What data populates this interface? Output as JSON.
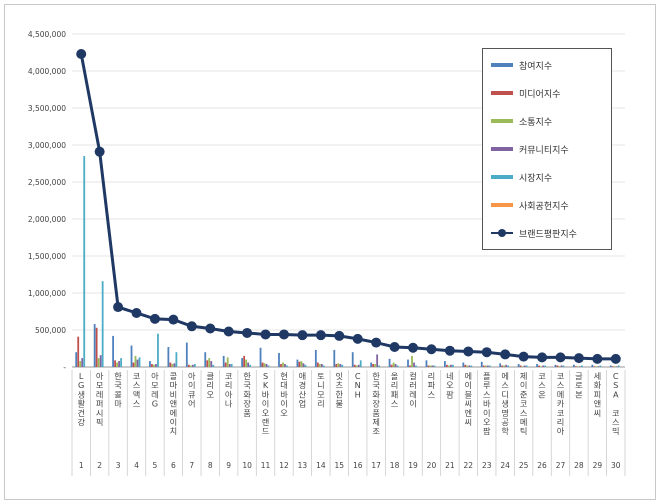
{
  "chart_data": {
    "type": "bar+line",
    "title": "",
    "xlabel": "",
    "ylabel": "",
    "ylim": [
      0,
      4500000
    ],
    "yticks": [
      "-",
      "500,000",
      "1,000,000",
      "1,500,000",
      "2,000,000",
      "2,500,000",
      "3,000,000",
      "3,500,000",
      "4,000,000",
      "4,500,000"
    ],
    "ytick_values": [
      0,
      500000,
      1000000,
      1500000,
      2000000,
      2500000,
      3000000,
      3500000,
      4000000,
      4500000
    ],
    "legend_position": "top-right",
    "categories": [
      "LG생활건강",
      "아모레퍼시픽",
      "한국콜마",
      "코스맥스",
      "아모레G",
      "콜마비앤에이치",
      "아이큐어",
      "클리오",
      "코리아나",
      "한국화장품",
      "SK바이오랜드",
      "현대바이오",
      "애경산업",
      "토니모리",
      "잇츠한불",
      "CNH",
      "한국화장품제조",
      "올리패스",
      "컬러레이",
      "리파스",
      "네오팜",
      "에이블씨엔씨",
      "플루스바이오팜",
      "에스디생명공학",
      "제이준코스메틱",
      "코스온",
      "코스메카코리아",
      "글로본",
      "세화피앤씨",
      "CSA 코스믹"
    ],
    "category_numbers": [
      "1",
      "2",
      "3",
      "4",
      "5",
      "6",
      "7",
      "8",
      "9",
      "10",
      "11",
      "12",
      "13",
      "14",
      "15",
      "16",
      "17",
      "18",
      "19",
      "20",
      "21",
      "22",
      "23",
      "24",
      "25",
      "26",
      "27",
      "28",
      "29",
      "30"
    ],
    "series": [
      {
        "name": "참여지수",
        "color": "#4f81bd",
        "values": [
          200000,
          580000,
          420000,
          290000,
          80000,
          270000,
          330000,
          200000,
          150000,
          120000,
          260000,
          190000,
          100000,
          230000,
          230000,
          200000,
          60000,
          110000,
          100000,
          90000,
          80000,
          60000,
          70000,
          50000,
          40000,
          40000,
          30000,
          30000,
          30000,
          20000
        ]
      },
      {
        "name": "미디어지수",
        "color": "#c0504d",
        "values": [
          410000,
          530000,
          90000,
          60000,
          40000,
          60000,
          30000,
          90000,
          60000,
          150000,
          60000,
          40000,
          70000,
          60000,
          40000,
          30000,
          40000,
          30000,
          20000,
          20000,
          30000,
          30000,
          20000,
          20000,
          20000,
          20000,
          20000,
          10000,
          10000,
          10000
        ]
      },
      {
        "name": "소통지수",
        "color": "#9bbb59",
        "values": [
          80000,
          120000,
          60000,
          150000,
          30000,
          40000,
          20000,
          120000,
          130000,
          100000,
          50000,
          60000,
          80000,
          40000,
          50000,
          20000,
          40000,
          60000,
          150000,
          20000,
          20000,
          20000,
          20000,
          20000,
          10000,
          10000,
          10000,
          10000,
          10000,
          10000
        ]
      },
      {
        "name": "커뮤니티지수",
        "color": "#8064a2",
        "values": [
          120000,
          160000,
          80000,
          100000,
          40000,
          50000,
          30000,
          80000,
          40000,
          60000,
          40000,
          40000,
          50000,
          40000,
          40000,
          30000,
          170000,
          40000,
          60000,
          20000,
          30000,
          20000,
          20000,
          30000,
          20000,
          20000,
          20000,
          10000,
          10000,
          10000
        ]
      },
      {
        "name": "시장지수",
        "color": "#4bacc6",
        "values": [
          2850000,
          1160000,
          120000,
          130000,
          450000,
          200000,
          40000,
          30000,
          40000,
          30000,
          20000,
          20000,
          30000,
          20000,
          30000,
          90000,
          20000,
          20000,
          20000,
          20000,
          30000,
          20000,
          20000,
          20000,
          20000,
          20000,
          20000,
          20000,
          20000,
          20000
        ]
      },
      {
        "name": "사회공헌지수",
        "color": "#f79646",
        "values": [
          0,
          0,
          0,
          0,
          0,
          0,
          0,
          0,
          0,
          0,
          0,
          0,
          0,
          0,
          0,
          0,
          0,
          0,
          0,
          0,
          0,
          0,
          0,
          0,
          0,
          0,
          0,
          0,
          0,
          0
        ]
      },
      {
        "name": "브랜드평판지수",
        "color": "#1f3864",
        "type": "line",
        "values": [
          4230000,
          2910000,
          810000,
          730000,
          650000,
          640000,
          550000,
          520000,
          480000,
          460000,
          440000,
          440000,
          430000,
          430000,
          420000,
          380000,
          330000,
          270000,
          260000,
          240000,
          220000,
          210000,
          200000,
          170000,
          140000,
          130000,
          130000,
          120000,
          110000,
          110000
        ]
      }
    ]
  }
}
